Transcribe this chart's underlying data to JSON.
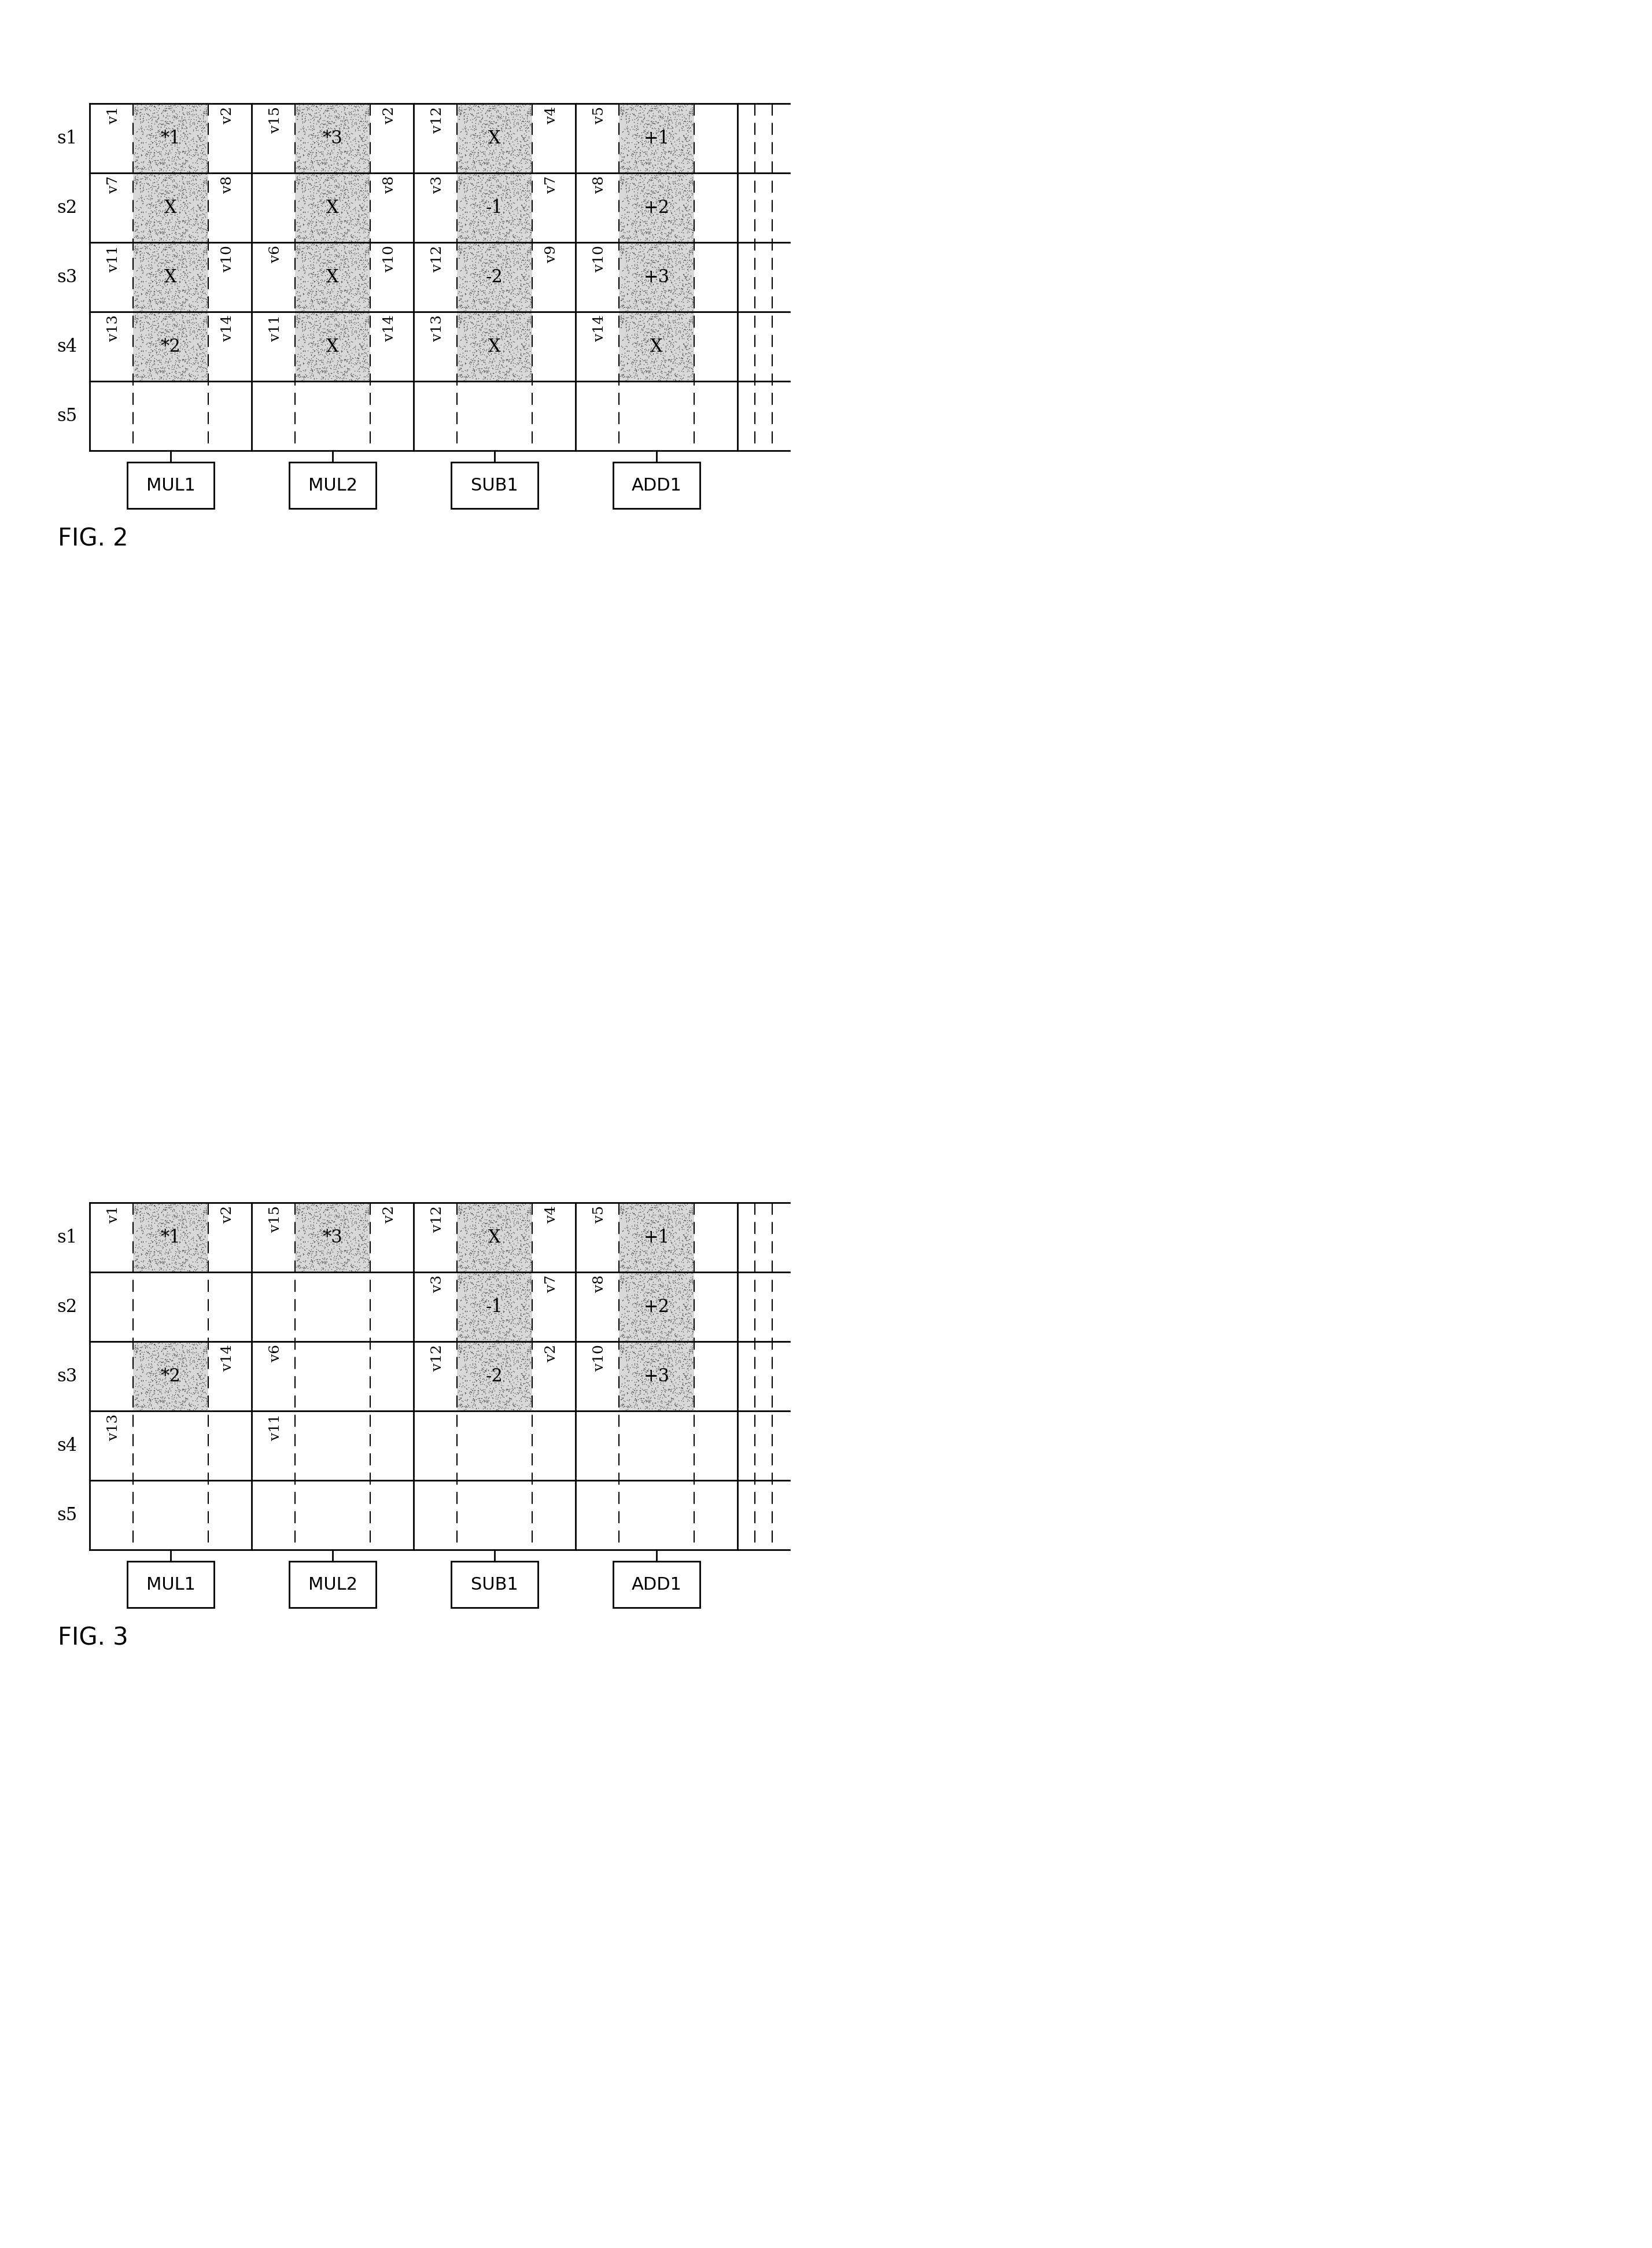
{
  "fig_width": 28.56,
  "fig_height": 38.87,
  "bg_color": "#ffffff",
  "line_color": "#000000",
  "figures": [
    {
      "label": "FIG. 2",
      "fig_index": 0,
      "units": [
        "MUL1",
        "MUL2",
        "SUB1",
        "ADD1"
      ],
      "steps": [
        "s1",
        "s2",
        "s3",
        "s4",
        "s5"
      ],
      "schedule": {
        "MUL1": {
          "cells": [
            {
              "step": "s1",
              "label": "*1",
              "shaded": true,
              "var_top": "v1",
              "var_bot": "v2"
            },
            {
              "step": "s2",
              "label": "X",
              "shaded": true,
              "var_top": "v7",
              "var_bot": "v8"
            },
            {
              "step": "s3",
              "label": "X",
              "shaded": true,
              "var_top": "v11",
              "var_bot": "v10"
            },
            {
              "step": "s4",
              "label": "*2",
              "shaded": true,
              "var_top": "v13",
              "var_bot": "v14"
            },
            {
              "step": "s5",
              "label": "",
              "shaded": false,
              "var_top": "",
              "var_bot": ""
            }
          ]
        },
        "MUL2": {
          "cells": [
            {
              "step": "s1",
              "label": "*3",
              "shaded": true,
              "var_top": "v15",
              "var_bot": "v2"
            },
            {
              "step": "s2",
              "label": "X",
              "shaded": true,
              "var_top": "",
              "var_bot": "v8"
            },
            {
              "step": "s3",
              "label": "X",
              "shaded": true,
              "var_top": "v6",
              "var_bot": "v10"
            },
            {
              "step": "s4",
              "label": "X",
              "shaded": true,
              "var_top": "v11",
              "var_bot": "v14"
            },
            {
              "step": "s5",
              "label": "",
              "shaded": false,
              "var_top": "",
              "var_bot": ""
            }
          ]
        },
        "SUB1": {
          "cells": [
            {
              "step": "s1",
              "label": "X",
              "shaded": true,
              "var_top": "v12",
              "var_bot": "v4"
            },
            {
              "step": "s2",
              "label": "-1",
              "shaded": true,
              "var_top": "v3",
              "var_bot": "v7"
            },
            {
              "step": "s3",
              "label": "-2",
              "shaded": true,
              "var_top": "v12",
              "var_bot": "v9"
            },
            {
              "step": "s4",
              "label": "X",
              "shaded": true,
              "var_top": "v13",
              "var_bot": ""
            },
            {
              "step": "s5",
              "label": "",
              "shaded": false,
              "var_top": "",
              "var_bot": ""
            }
          ]
        },
        "ADD1": {
          "cells": [
            {
              "step": "s1",
              "label": "+1",
              "shaded": true,
              "var_top": "v5",
              "var_bot": ""
            },
            {
              "step": "s2",
              "label": "+2",
              "shaded": true,
              "var_top": "v8",
              "var_bot": ""
            },
            {
              "step": "s3",
              "label": "+3",
              "shaded": true,
              "var_top": "v10",
              "var_bot": ""
            },
            {
              "step": "s4",
              "label": "X",
              "shaded": true,
              "var_top": "v14",
              "var_bot": ""
            },
            {
              "step": "s5",
              "label": "",
              "shaded": false,
              "var_top": "",
              "var_bot": ""
            }
          ]
        }
      }
    },
    {
      "label": "FIG. 3",
      "fig_index": 1,
      "units": [
        "MUL1",
        "MUL2",
        "SUB1",
        "ADD1"
      ],
      "steps": [
        "s1",
        "s2",
        "s3",
        "s4",
        "s5"
      ],
      "schedule": {
        "MUL1": {
          "cells": [
            {
              "step": "s1",
              "label": "*1",
              "shaded": true,
              "var_top": "v1",
              "var_bot": "v2"
            },
            {
              "step": "s2",
              "label": "",
              "shaded": false,
              "var_top": "",
              "var_bot": ""
            },
            {
              "step": "s3",
              "label": "*2",
              "shaded": true,
              "var_top": "",
              "var_bot": "v14"
            },
            {
              "step": "s4",
              "label": "",
              "shaded": false,
              "var_top": "v13",
              "var_bot": ""
            },
            {
              "step": "s5",
              "label": "",
              "shaded": false,
              "var_top": "",
              "var_bot": ""
            }
          ]
        },
        "MUL2": {
          "cells": [
            {
              "step": "s1",
              "label": "*3",
              "shaded": true,
              "var_top": "v15",
              "var_bot": "v2"
            },
            {
              "step": "s2",
              "label": "",
              "shaded": false,
              "var_top": "",
              "var_bot": ""
            },
            {
              "step": "s3",
              "label": "",
              "shaded": false,
              "var_top": "v6",
              "var_bot": ""
            },
            {
              "step": "s4",
              "label": "",
              "shaded": false,
              "var_top": "v11",
              "var_bot": ""
            },
            {
              "step": "s5",
              "label": "",
              "shaded": false,
              "var_top": "",
              "var_bot": ""
            }
          ]
        },
        "SUB1": {
          "cells": [
            {
              "step": "s1",
              "label": "X",
              "shaded": true,
              "var_top": "v12",
              "var_bot": "v4"
            },
            {
              "step": "s2",
              "label": "-1",
              "shaded": true,
              "var_top": "v3",
              "var_bot": "v7"
            },
            {
              "step": "s3",
              "label": "-2",
              "shaded": true,
              "var_top": "v12",
              "var_bot": "v2"
            },
            {
              "step": "s4",
              "label": "",
              "shaded": false,
              "var_top": "",
              "var_bot": ""
            },
            {
              "step": "s5",
              "label": "",
              "shaded": false,
              "var_top": "",
              "var_bot": ""
            }
          ]
        },
        "ADD1": {
          "cells": [
            {
              "step": "s1",
              "label": "+1",
              "shaded": true,
              "var_top": "v5",
              "var_bot": ""
            },
            {
              "step": "s2",
              "label": "+2",
              "shaded": true,
              "var_top": "v8",
              "var_bot": ""
            },
            {
              "step": "s3",
              "label": "+3",
              "shaded": true,
              "var_top": "v10",
              "var_bot": ""
            },
            {
              "step": "s4",
              "label": "",
              "shaded": false,
              "var_top": "",
              "var_bot": ""
            },
            {
              "step": "s5",
              "label": "",
              "shaded": false,
              "var_top": "",
              "var_bot": ""
            }
          ]
        }
      }
    }
  ]
}
